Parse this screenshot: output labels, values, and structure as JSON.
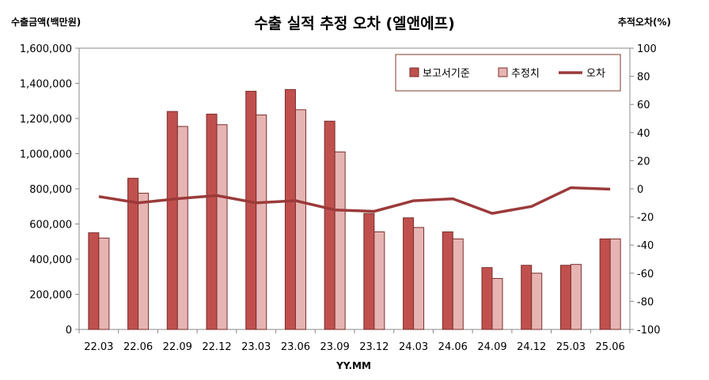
{
  "chart_data": {
    "type": "bar",
    "title": "수출 실적 추정 오차 (엘앤에프)",
    "ylabel": "수출금액(백만원)",
    "y2label": "추적오차(%)",
    "xlabel": "YY.MM",
    "categories": [
      "22.03",
      "22.06",
      "22.09",
      "22.12",
      "23.03",
      "23.06",
      "23.09",
      "23.12",
      "24.03",
      "24.06",
      "24.09",
      "24.12",
      "25.03",
      "25.06"
    ],
    "ylim": [
      0,
      1600000
    ],
    "y2lim": [
      -100,
      100
    ],
    "yticks": [
      "0",
      "200,000",
      "400,000",
      "600,000",
      "800,000",
      "1,000,000",
      "1,200,000",
      "1,400,000",
      "1,600,000"
    ],
    "y2ticks": [
      "-100",
      "-80",
      "-60",
      "-40",
      "-20",
      "0",
      "20",
      "40",
      "60",
      "80",
      "100"
    ],
    "legend_position": "top-right",
    "grid": false,
    "series": [
      {
        "name": "보고서기준",
        "kind": "bar",
        "color": "#c0504d",
        "values": [
          550000,
          860000,
          1240000,
          1225000,
          1355000,
          1365000,
          1185000,
          660000,
          635000,
          555000,
          352000,
          365000,
          365000,
          515000
        ]
      },
      {
        "name": "추정치",
        "kind": "bar",
        "color": "#e6b5b3",
        "values": [
          520000,
          775000,
          1155000,
          1165000,
          1220000,
          1250000,
          1010000,
          555000,
          580000,
          515000,
          290000,
          320000,
          370000,
          515000
        ]
      },
      {
        "name": "오차",
        "kind": "line",
        "axis": "right",
        "color": "#9b3a3a",
        "values": [
          -5.5,
          -10,
          -7,
          -4.8,
          -10,
          -8.4,
          -15,
          -16,
          -8.5,
          -7.1,
          -17.5,
          -12.5,
          0.8,
          -0.2
        ]
      }
    ]
  }
}
